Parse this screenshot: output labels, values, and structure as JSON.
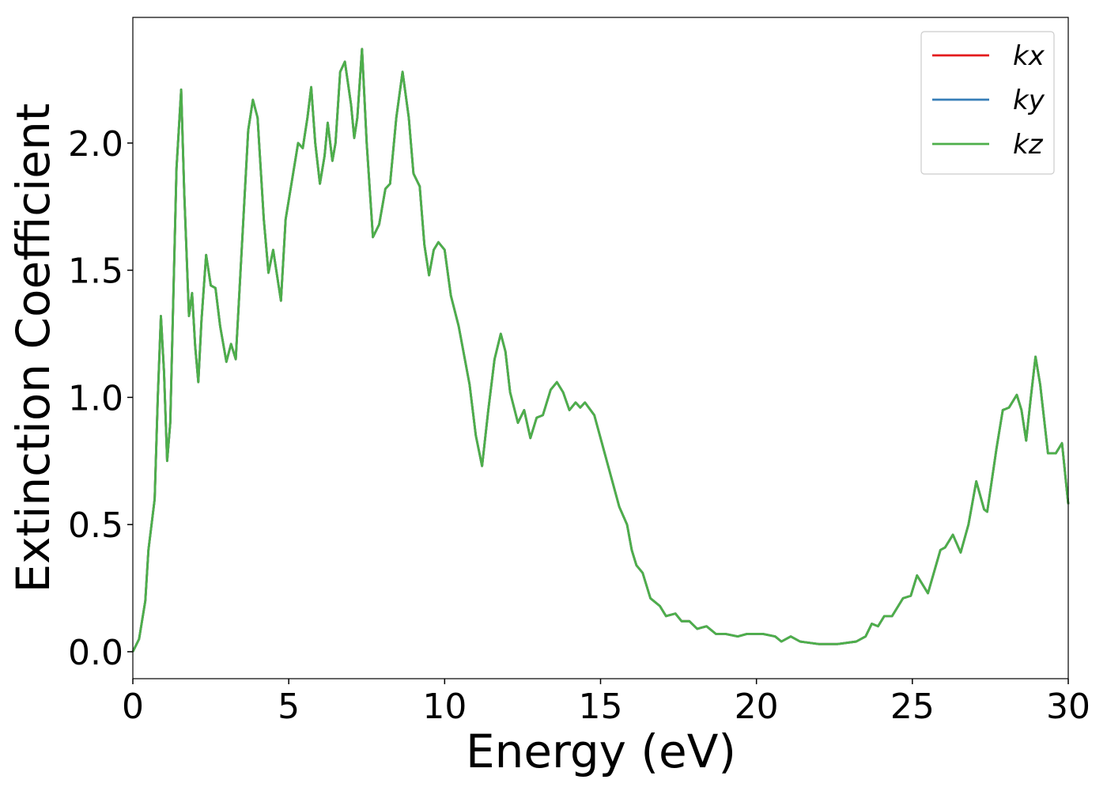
{
  "chart_data": {
    "type": "line",
    "xlabel": "Energy (eV)",
    "ylabel": "Extinction Coefficient",
    "x": [
      0,
      0.2,
      0.4,
      0.5,
      0.7,
      0.8,
      0.9,
      1.0,
      1.1,
      1.2,
      1.3,
      1.4,
      1.55,
      1.65,
      1.8,
      1.9,
      2.0,
      2.1,
      2.2,
      2.35,
      2.5,
      2.65,
      2.8,
      3.0,
      3.15,
      3.3,
      3.5,
      3.7,
      3.85,
      4.0,
      4.2,
      4.35,
      4.5,
      4.6,
      4.75,
      4.9,
      5.1,
      5.3,
      5.45,
      5.6,
      5.72,
      5.85,
      6.0,
      6.15,
      6.25,
      6.4,
      6.5,
      6.65,
      6.8,
      7.0,
      7.1,
      7.2,
      7.35,
      7.5,
      7.7,
      7.9,
      8.1,
      8.25,
      8.45,
      8.65,
      8.85,
      9.0,
      9.2,
      9.35,
      9.5,
      9.65,
      9.8,
      10.0,
      10.2,
      10.45,
      10.8,
      11.0,
      11.2,
      11.4,
      11.6,
      11.8,
      11.95,
      12.1,
      12.35,
      12.55,
      12.75,
      12.95,
      13.15,
      13.4,
      13.6,
      13.8,
      14.0,
      14.2,
      14.35,
      14.5,
      14.8,
      15.2,
      15.6,
      15.85,
      16.0,
      16.15,
      16.35,
      16.6,
      16.9,
      17.1,
      17.4,
      17.6,
      17.85,
      18.1,
      18.4,
      18.7,
      19.0,
      19.4,
      19.7,
      20.2,
      20.6,
      20.8,
      21.1,
      21.4,
      22.0,
      22.6,
      23.2,
      23.5,
      23.7,
      23.9,
      24.1,
      24.35,
      24.7,
      24.95,
      25.15,
      25.3,
      25.5,
      25.9,
      26.05,
      26.3,
      26.55,
      26.8,
      27.05,
      27.3,
      27.4,
      27.7,
      27.9,
      28.1,
      28.35,
      28.5,
      28.65,
      28.8,
      28.95,
      29.1,
      29.35,
      29.6,
      29.8,
      30.0
    ],
    "series": [
      {
        "name": "kx",
        "color": "#e41a1c",
        "values": [
          0,
          0.05,
          0.2,
          0.4,
          0.6,
          1.0,
          1.32,
          1.1,
          0.75,
          0.9,
          1.4,
          1.9,
          2.21,
          1.8,
          1.32,
          1.41,
          1.2,
          1.06,
          1.3,
          1.56,
          1.44,
          1.43,
          1.28,
          1.14,
          1.21,
          1.15,
          1.6,
          2.05,
          2.17,
          2.1,
          1.7,
          1.49,
          1.58,
          1.5,
          1.38,
          1.7,
          1.85,
          2.0,
          1.98,
          2.1,
          2.22,
          2.0,
          1.84,
          1.95,
          2.08,
          1.93,
          2.0,
          2.28,
          2.32,
          2.15,
          2.02,
          2.1,
          2.37,
          2.0,
          1.63,
          1.68,
          1.82,
          1.84,
          2.1,
          2.28,
          2.1,
          1.88,
          1.83,
          1.6,
          1.48,
          1.58,
          1.61,
          1.58,
          1.4,
          1.28,
          1.05,
          0.85,
          0.73,
          0.95,
          1.15,
          1.25,
          1.18,
          1.02,
          0.9,
          0.95,
          0.84,
          0.92,
          0.93,
          1.03,
          1.06,
          1.02,
          0.95,
          0.98,
          0.96,
          0.98,
          0.93,
          0.75,
          0.57,
          0.5,
          0.4,
          0.34,
          0.31,
          0.21,
          0.18,
          0.14,
          0.15,
          0.12,
          0.12,
          0.09,
          0.1,
          0.07,
          0.07,
          0.06,
          0.07,
          0.07,
          0.06,
          0.04,
          0.06,
          0.04,
          0.03,
          0.03,
          0.04,
          0.06,
          0.11,
          0.1,
          0.14,
          0.14,
          0.21,
          0.22,
          0.3,
          0.27,
          0.23,
          0.4,
          0.41,
          0.46,
          0.39,
          0.5,
          0.67,
          0.56,
          0.55,
          0.8,
          0.95,
          0.96,
          1.01,
          0.95,
          0.83,
          1.0,
          1.16,
          1.05,
          0.78,
          0.78,
          0.82,
          0.58
        ]
      },
      {
        "name": "ky",
        "color": "#377eb8",
        "values": [
          0,
          0.05,
          0.2,
          0.4,
          0.6,
          1.0,
          1.32,
          1.1,
          0.75,
          0.9,
          1.4,
          1.9,
          2.21,
          1.8,
          1.32,
          1.41,
          1.2,
          1.06,
          1.3,
          1.56,
          1.44,
          1.43,
          1.28,
          1.14,
          1.21,
          1.15,
          1.6,
          2.05,
          2.17,
          2.1,
          1.7,
          1.49,
          1.58,
          1.5,
          1.38,
          1.7,
          1.85,
          2.0,
          1.98,
          2.1,
          2.22,
          2.0,
          1.84,
          1.95,
          2.08,
          1.93,
          2.0,
          2.28,
          2.32,
          2.15,
          2.02,
          2.1,
          2.37,
          2.0,
          1.63,
          1.68,
          1.82,
          1.84,
          2.1,
          2.28,
          2.1,
          1.88,
          1.83,
          1.6,
          1.48,
          1.58,
          1.61,
          1.58,
          1.4,
          1.28,
          1.05,
          0.85,
          0.73,
          0.95,
          1.15,
          1.25,
          1.18,
          1.02,
          0.9,
          0.95,
          0.84,
          0.92,
          0.93,
          1.03,
          1.06,
          1.02,
          0.95,
          0.98,
          0.96,
          0.98,
          0.93,
          0.75,
          0.57,
          0.5,
          0.4,
          0.34,
          0.31,
          0.21,
          0.18,
          0.14,
          0.15,
          0.12,
          0.12,
          0.09,
          0.1,
          0.07,
          0.07,
          0.06,
          0.07,
          0.07,
          0.06,
          0.04,
          0.06,
          0.04,
          0.03,
          0.03,
          0.04,
          0.06,
          0.11,
          0.1,
          0.14,
          0.14,
          0.21,
          0.22,
          0.3,
          0.27,
          0.23,
          0.4,
          0.41,
          0.46,
          0.39,
          0.5,
          0.67,
          0.56,
          0.55,
          0.8,
          0.95,
          0.96,
          1.01,
          0.95,
          0.83,
          1.0,
          1.16,
          1.05,
          0.78,
          0.78,
          0.82,
          0.58
        ]
      },
      {
        "name": "kz",
        "color": "#4daf4a",
        "values": [
          0,
          0.05,
          0.2,
          0.4,
          0.6,
          1.0,
          1.32,
          1.1,
          0.75,
          0.9,
          1.4,
          1.9,
          2.21,
          1.8,
          1.32,
          1.41,
          1.2,
          1.06,
          1.3,
          1.56,
          1.44,
          1.43,
          1.28,
          1.14,
          1.21,
          1.15,
          1.6,
          2.05,
          2.17,
          2.1,
          1.7,
          1.49,
          1.58,
          1.5,
          1.38,
          1.7,
          1.85,
          2.0,
          1.98,
          2.1,
          2.22,
          2.0,
          1.84,
          1.95,
          2.08,
          1.93,
          2.0,
          2.28,
          2.32,
          2.15,
          2.02,
          2.1,
          2.37,
          2.0,
          1.63,
          1.68,
          1.82,
          1.84,
          2.1,
          2.28,
          2.1,
          1.88,
          1.83,
          1.6,
          1.48,
          1.58,
          1.61,
          1.58,
          1.4,
          1.28,
          1.05,
          0.85,
          0.73,
          0.95,
          1.15,
          1.25,
          1.18,
          1.02,
          0.9,
          0.95,
          0.84,
          0.92,
          0.93,
          1.03,
          1.06,
          1.02,
          0.95,
          0.98,
          0.96,
          0.98,
          0.93,
          0.75,
          0.57,
          0.5,
          0.4,
          0.34,
          0.31,
          0.21,
          0.18,
          0.14,
          0.15,
          0.12,
          0.12,
          0.09,
          0.1,
          0.07,
          0.07,
          0.06,
          0.07,
          0.07,
          0.06,
          0.04,
          0.06,
          0.04,
          0.03,
          0.03,
          0.04,
          0.06,
          0.11,
          0.1,
          0.14,
          0.14,
          0.21,
          0.22,
          0.3,
          0.27,
          0.23,
          0.4,
          0.41,
          0.46,
          0.39,
          0.5,
          0.67,
          0.56,
          0.55,
          0.8,
          0.95,
          0.96,
          1.01,
          0.95,
          0.83,
          1.0,
          1.16,
          1.05,
          0.78,
          0.78,
          0.82,
          0.58
        ]
      }
    ],
    "xlim": [
      0,
      30
    ],
    "xticks": [
      0,
      5,
      10,
      15,
      20,
      25,
      30
    ],
    "ylim": [
      -0.106,
      2.494
    ],
    "yticks": [
      {
        "value": 0,
        "label": "0.0"
      },
      0.5,
      {
        "value": 1,
        "label": "1.0"
      },
      1.5,
      {
        "value": 2,
        "label": "2.0"
      }
    ],
    "legend": "upper-right"
  }
}
